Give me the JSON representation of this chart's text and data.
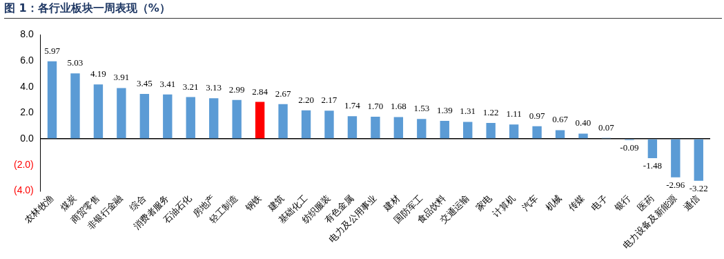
{
  "chart_data": {
    "type": "bar",
    "title": "图 1：各行业板块一周表现（%）",
    "categories": [
      "农林牧渔",
      "煤炭",
      "商贸零售",
      "非银行金融",
      "综合",
      "消费者服务",
      "石油石化",
      "房地产",
      "轻工制造",
      "钢铁",
      "建筑",
      "基础化工",
      "纺织服装",
      "有色金属",
      "电力及公用事业",
      "建材",
      "国防军工",
      "食品饮料",
      "交通运输",
      "家电",
      "计算机",
      "汽车",
      "机械",
      "传媒",
      "电子",
      "银行",
      "医药",
      "电力设备及新能源",
      "通信"
    ],
    "values": [
      5.97,
      5.03,
      4.19,
      3.91,
      3.45,
      3.41,
      3.21,
      3.13,
      2.99,
      2.84,
      2.67,
      2.2,
      2.17,
      1.74,
      1.7,
      1.68,
      1.53,
      1.39,
      1.31,
      1.22,
      1.11,
      0.97,
      0.67,
      0.4,
      0.07,
      -0.09,
      -1.48,
      -2.96,
      -3.22
    ],
    "colors": [
      "#5b9bd5",
      "#5b9bd5",
      "#5b9bd5",
      "#5b9bd5",
      "#5b9bd5",
      "#5b9bd5",
      "#5b9bd5",
      "#5b9bd5",
      "#5b9bd5",
      "#ff0000",
      "#5b9bd5",
      "#5b9bd5",
      "#5b9bd5",
      "#5b9bd5",
      "#5b9bd5",
      "#5b9bd5",
      "#5b9bd5",
      "#5b9bd5",
      "#5b9bd5",
      "#5b9bd5",
      "#5b9bd5",
      "#5b9bd5",
      "#5b9bd5",
      "#5b9bd5",
      "#5b9bd5",
      "#5b9bd5",
      "#5b9bd5",
      "#5b9bd5",
      "#5b9bd5"
    ],
    "ylim": [
      -4,
      8
    ],
    "yticks": [
      {
        "value": -4,
        "label": "(4.0)"
      },
      {
        "value": -2,
        "label": "(2.0)"
      },
      {
        "value": 0,
        "label": "0.0"
      },
      {
        "value": 2,
        "label": "2.0"
      },
      {
        "value": 4,
        "label": "4.0"
      },
      {
        "value": 6,
        "label": "6.0"
      },
      {
        "value": 8,
        "label": "8.0"
      }
    ],
    "value_labels": [
      "5.97",
      "5.03",
      "4.19",
      "3.91",
      "3.45",
      "3.41",
      "3.21",
      "3.13",
      "2.99",
      "2.84",
      "2.67",
      "2.20",
      "2.17",
      "1.74",
      "1.70",
      "1.68",
      "1.53",
      "1.39",
      "1.31",
      "1.22",
      "1.11",
      "0.97",
      "0.67",
      "0.40",
      "0.07",
      "-0.09",
      "-1.48",
      "-2.96",
      "-3.22"
    ]
  }
}
